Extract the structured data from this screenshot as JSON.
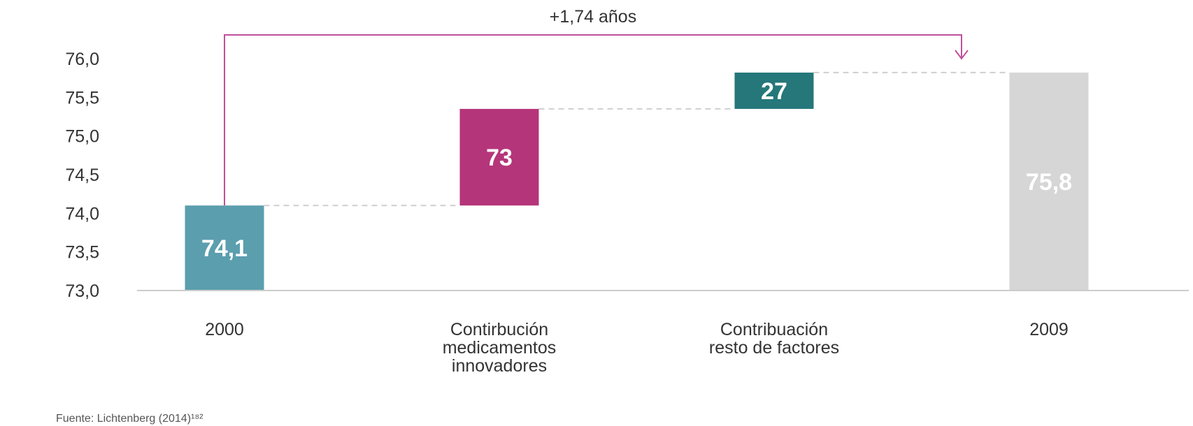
{
  "chart_data": {
    "type": "bar",
    "subtype": "waterfall",
    "categories": [
      [
        "2000"
      ],
      [
        "Contirbución",
        "medicamentos",
        "innovadores"
      ],
      [
        "Contribuación",
        "resto de factores"
      ],
      [
        "2009"
      ]
    ],
    "bars": [
      {
        "kind": "total",
        "start": 73.0,
        "end": 74.1,
        "label": "74,1",
        "color": "#5b9eae"
      },
      {
        "kind": "step",
        "start": 74.1,
        "end": 75.35,
        "label": "73",
        "color": "#b5357a"
      },
      {
        "kind": "step",
        "start": 75.35,
        "end": 75.82,
        "label": "27",
        "color": "#25777a"
      },
      {
        "kind": "total",
        "start": 73.0,
        "end": 75.82,
        "label": "75,8",
        "color": "#d6d6d6"
      }
    ],
    "y_ticks": [
      "73,0",
      "73,5",
      "74,0",
      "74,5",
      "75,0",
      "75,5",
      "76,0"
    ],
    "ylim": [
      73.0,
      76.0
    ],
    "annotation": {
      "text": "+1,74 años",
      "from_category": 0,
      "to_category": 3,
      "color": "#c0509a"
    },
    "connector_color": "#cfcfcf",
    "axis_color": "#cccccc"
  },
  "source": "Fuente: Lichtenberg (2014)¹⁸²"
}
